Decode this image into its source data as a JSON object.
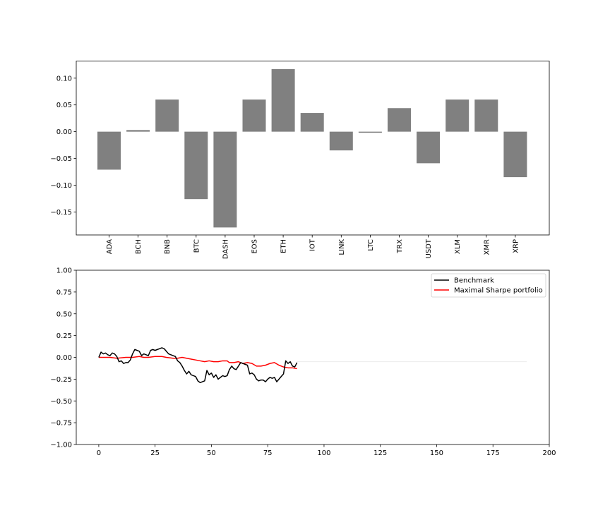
{
  "chart_data": [
    {
      "type": "bar",
      "categories": [
        "ADA",
        "BCH",
        "BNB",
        "BTC",
        "DASH",
        "EOS",
        "ETH",
        "IOT",
        "LINK",
        "LTC",
        "TRX",
        "USDT",
        "XLM",
        "XMR",
        "XRP"
      ],
      "values": [
        -0.071,
        0.003,
        0.06,
        -0.126,
        -0.179,
        0.06,
        0.117,
        0.035,
        -0.035,
        -0.002,
        0.044,
        -0.059,
        0.06,
        0.06,
        -0.085
      ],
      "bar_color": "#808080",
      "ylim": [
        -0.193,
        0.132
      ],
      "yticks": [
        0.1,
        0.05,
        0.0,
        -0.05,
        -0.1,
        -0.15
      ],
      "ytick_labels": [
        "0.10",
        "0.05",
        "0.00",
        "−0.05",
        "−0.10",
        "−0.15"
      ],
      "title": "",
      "xlabel": "",
      "ylabel": ""
    },
    {
      "type": "line",
      "xlim": [
        -10,
        200
      ],
      "ylim": [
        -1.0,
        1.0
      ],
      "xticks": [
        0,
        25,
        50,
        75,
        100,
        125,
        150,
        175,
        200
      ],
      "xtick_labels": [
        "0",
        "25",
        "50",
        "75",
        "100",
        "125",
        "150",
        "175",
        "200"
      ],
      "yticks": [
        1.0,
        0.75,
        0.5,
        0.25,
        0.0,
        -0.25,
        -0.5,
        -0.75,
        -1.0
      ],
      "ytick_labels": [
        "1.00",
        "0.75",
        "0.50",
        "0.25",
        "0.00",
        "−0.25",
        "−0.50",
        "−0.75",
        "−1.00"
      ],
      "legend_position": "top-right",
      "series": [
        {
          "name": "Benchmark",
          "color": "#000000",
          "points": [
            [
              0,
              0.0
            ],
            [
              1,
              0.06
            ],
            [
              2,
              0.04
            ],
            [
              3,
              0.05
            ],
            [
              4,
              0.03
            ],
            [
              5,
              0.02
            ],
            [
              6,
              0.05
            ],
            [
              7,
              0.04
            ],
            [
              8,
              0.01
            ],
            [
              9,
              -0.05
            ],
            [
              10,
              -0.04
            ],
            [
              11,
              -0.07
            ],
            [
              12,
              -0.06
            ],
            [
              13,
              -0.06
            ],
            [
              14,
              -0.03
            ],
            [
              15,
              0.04
            ],
            [
              16,
              0.09
            ],
            [
              17,
              0.08
            ],
            [
              18,
              0.07
            ],
            [
              19,
              0.02
            ],
            [
              20,
              0.04
            ],
            [
              21,
              0.03
            ],
            [
              22,
              0.02
            ],
            [
              23,
              0.08
            ],
            [
              24,
              0.09
            ],
            [
              25,
              0.08
            ],
            [
              26,
              0.09
            ],
            [
              27,
              0.1
            ],
            [
              28,
              0.11
            ],
            [
              29,
              0.1
            ],
            [
              30,
              0.07
            ],
            [
              31,
              0.04
            ],
            [
              32,
              0.03
            ],
            [
              33,
              0.02
            ],
            [
              34,
              0.01
            ],
            [
              35,
              -0.04
            ],
            [
              36,
              -0.06
            ],
            [
              37,
              -0.1
            ],
            [
              38,
              -0.15
            ],
            [
              39,
              -0.19
            ],
            [
              40,
              -0.16
            ],
            [
              41,
              -0.2
            ],
            [
              42,
              -0.21
            ],
            [
              43,
              -0.22
            ],
            [
              44,
              -0.27
            ],
            [
              45,
              -0.29
            ],
            [
              46,
              -0.28
            ],
            [
              47,
              -0.27
            ],
            [
              48,
              -0.15
            ],
            [
              49,
              -0.2
            ],
            [
              50,
              -0.18
            ],
            [
              51,
              -0.23
            ],
            [
              52,
              -0.2
            ],
            [
              53,
              -0.25
            ],
            [
              54,
              -0.23
            ],
            [
              55,
              -0.21
            ],
            [
              56,
              -0.22
            ],
            [
              57,
              -0.21
            ],
            [
              58,
              -0.14
            ],
            [
              59,
              -0.1
            ],
            [
              60,
              -0.13
            ],
            [
              61,
              -0.14
            ],
            [
              62,
              -0.1
            ],
            [
              63,
              -0.06
            ],
            [
              64,
              -0.07
            ],
            [
              65,
              -0.08
            ],
            [
              66,
              -0.09
            ],
            [
              67,
              -0.19
            ],
            [
              68,
              -0.18
            ],
            [
              69,
              -0.2
            ],
            [
              70,
              -0.25
            ],
            [
              71,
              -0.27
            ],
            [
              72,
              -0.26
            ],
            [
              73,
              -0.26
            ],
            [
              74,
              -0.28
            ],
            [
              75,
              -0.25
            ],
            [
              76,
              -0.23
            ],
            [
              77,
              -0.24
            ],
            [
              78,
              -0.23
            ],
            [
              79,
              -0.28
            ],
            [
              80,
              -0.25
            ],
            [
              81,
              -0.22
            ],
            [
              82,
              -0.19
            ],
            [
              83,
              -0.04
            ],
            [
              84,
              -0.07
            ],
            [
              85,
              -0.05
            ],
            [
              86,
              -0.1
            ],
            [
              87,
              -0.11
            ],
            [
              88,
              -0.06
            ]
          ]
        },
        {
          "name": "Maximal Sharpe portfolio",
          "color": "#ff0000",
          "points": [
            [
              0,
              0.0
            ],
            [
              5,
              0.0
            ],
            [
              8,
              -0.01
            ],
            [
              12,
              0.0
            ],
            [
              15,
              0.0
            ],
            [
              18,
              0.01
            ],
            [
              20,
              0.0
            ],
            [
              22,
              0.0
            ],
            [
              25,
              0.01
            ],
            [
              28,
              0.01
            ],
            [
              30,
              0.0
            ],
            [
              33,
              -0.01
            ],
            [
              35,
              -0.01
            ],
            [
              37,
              0.0
            ],
            [
              39,
              -0.01
            ],
            [
              41,
              -0.02
            ],
            [
              43,
              -0.03
            ],
            [
              45,
              -0.04
            ],
            [
              47,
              -0.05
            ],
            [
              49,
              -0.04
            ],
            [
              51,
              -0.05
            ],
            [
              53,
              -0.05
            ],
            [
              55,
              -0.04
            ],
            [
              57,
              -0.04
            ],
            [
              58,
              -0.06
            ],
            [
              60,
              -0.06
            ],
            [
              62,
              -0.05
            ],
            [
              64,
              -0.07
            ],
            [
              66,
              -0.06
            ],
            [
              68,
              -0.07
            ],
            [
              70,
              -0.1
            ],
            [
              72,
              -0.1
            ],
            [
              74,
              -0.09
            ],
            [
              76,
              -0.07
            ],
            [
              78,
              -0.06
            ],
            [
              80,
              -0.09
            ],
            [
              82,
              -0.11
            ],
            [
              84,
              -0.12
            ],
            [
              86,
              -0.12
            ],
            [
              88,
              -0.13
            ]
          ]
        },
        {
          "name": "",
          "color": "#ebebeb",
          "points": [
            [
              88,
              -0.05
            ],
            [
              190,
              -0.05
            ]
          ]
        }
      ]
    }
  ]
}
